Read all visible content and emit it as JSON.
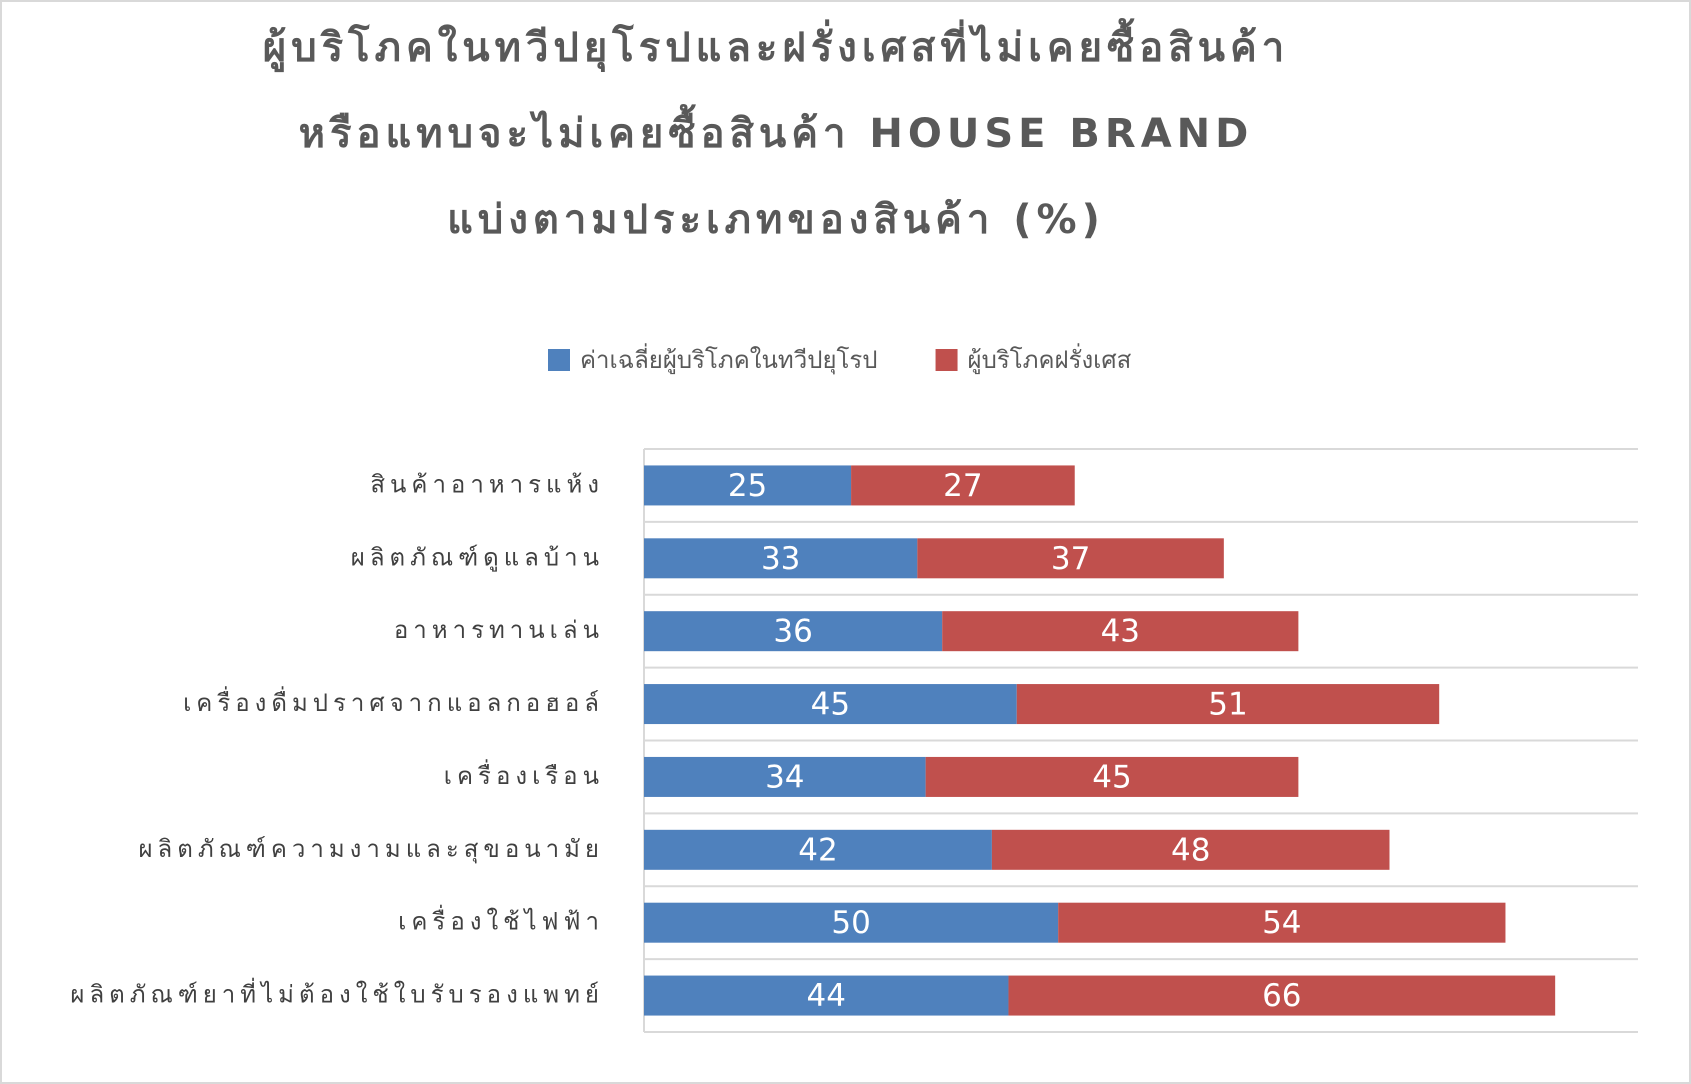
{
  "chart_data": {
    "type": "stacked-bar-horizontal",
    "title": [
      "ผู้บริโภคในทวีปยุโรปและฝรั่งเศสที่ไม่เคยซื้อสินค้า",
      "หรือแทบจะไม่เคยซื้อสินค้า HOUSE BRAND",
      "แบ่งตามประเภทของสินค้า  (%)"
    ],
    "categories": [
      "สินค้าอาหารแห้ง",
      "ผลิตภัณฑ์ดูแลบ้าน",
      "อาหารทานเล่น",
      "เครื่องดื่มปราศจากแอลกอฮอล์",
      "เครื่องเรือน",
      "ผลิตภัณฑ์ความงามและสุขอนามัย",
      "เครื่องใช้ไฟฟ้า",
      "ผลิตภัณฑ์ยาที่ไม่ต้องใช้ใบรับรองแพทย์"
    ],
    "series": [
      {
        "name": "ค่าเฉลี่ยผู้บริโภคในทวีปยุโรป",
        "color": "#4f81bd",
        "values": [
          25,
          33,
          36,
          45,
          34,
          42,
          50,
          44
        ]
      },
      {
        "name": "ผู้บริโภคฝรั่งเศส",
        "color": "#c0504d",
        "values": [
          27,
          37,
          43,
          51,
          45,
          48,
          54,
          66
        ]
      }
    ],
    "xlim": [
      0,
      120
    ],
    "grid": true,
    "legend": "top"
  }
}
